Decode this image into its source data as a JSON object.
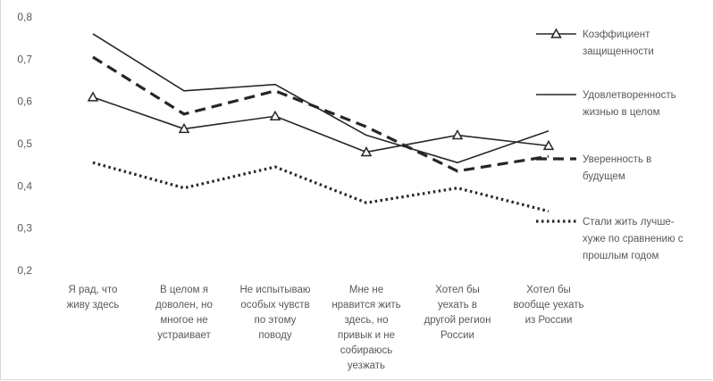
{
  "chart_data": {
    "type": "line",
    "title": "",
    "xlabel": "",
    "ylabel": "",
    "ylim": [
      0.2,
      0.8
    ],
    "yticks": [
      "0,8",
      "0,7",
      "0,6",
      "0,5",
      "0,4",
      "0,3",
      "0,2"
    ],
    "ytick_values": [
      0.8,
      0.7,
      0.6,
      0.5,
      0.4,
      0.3,
      0.2
    ],
    "grid": false,
    "legend_position": "right",
    "categories": [
      [
        "Я рад, что",
        "живу здесь"
      ],
      [
        "В целом я",
        "доволен, но",
        "многое не",
        "устраивает"
      ],
      [
        "Не испытываю",
        "особых чувств",
        "по этому",
        "поводу"
      ],
      [
        "Мне не",
        "нравится жить",
        "здесь, но",
        "привык и не",
        "собираюсь",
        "уезжать"
      ],
      [
        "Хотел бы",
        "уехать в",
        "другой регион",
        "России"
      ],
      [
        "Хотел бы",
        "вообще уехать",
        "из России"
      ]
    ],
    "series": [
      {
        "name": [
          "Коэффициент",
          "защищенности"
        ],
        "values": [
          0.61,
          0.535,
          0.565,
          0.48,
          0.52,
          0.495
        ],
        "style": "solid-triangle",
        "color": "#262626"
      },
      {
        "name": [
          "Удовлетворенность",
          "жизнью в целом"
        ],
        "values": [
          0.76,
          0.625,
          0.64,
          0.52,
          0.455,
          0.53
        ],
        "style": "solid",
        "color": "#262626"
      },
      {
        "name": [
          "Уверенность в",
          "будущем"
        ],
        "values": [
          0.705,
          0.57,
          0.625,
          0.54,
          0.435,
          0.47
        ],
        "style": "dashed",
        "color": "#262626"
      },
      {
        "name": [
          "Стали жить лучше-",
          "хуже по сравнению с",
          "прошлым годом"
        ],
        "values": [
          0.455,
          0.395,
          0.445,
          0.36,
          0.395,
          0.34
        ],
        "style": "dotted",
        "color": "#262626"
      }
    ]
  }
}
